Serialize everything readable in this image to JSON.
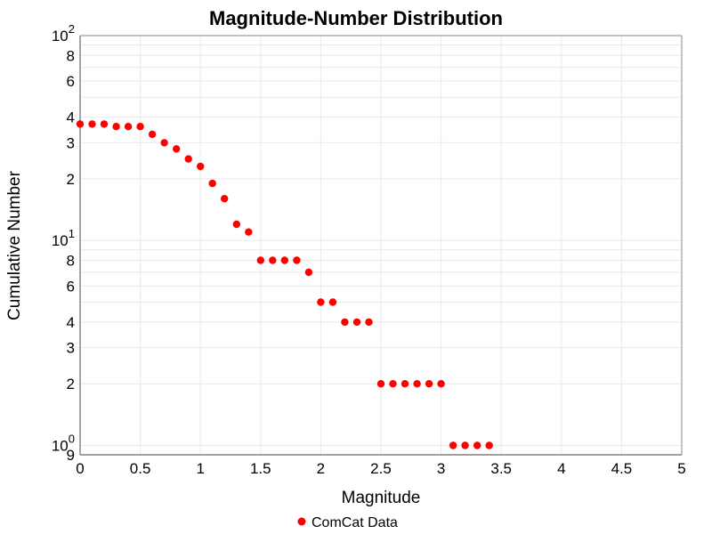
{
  "chart_data": {
    "type": "scatter",
    "title": "Magnitude-Number Distribution",
    "xlabel": "Magnitude",
    "ylabel": "Cumulative Number",
    "x_range": [
      0,
      5
    ],
    "y_scale": "log",
    "y_range": [
      0.9,
      100
    ],
    "grid": true,
    "x_ticks": [
      {
        "v": 0,
        "label": "0"
      },
      {
        "v": 0.5,
        "label": "0.5"
      },
      {
        "v": 1,
        "label": "1"
      },
      {
        "v": 1.5,
        "label": "1.5"
      },
      {
        "v": 2,
        "label": "2"
      },
      {
        "v": 2.5,
        "label": "2.5"
      },
      {
        "v": 3,
        "label": "3"
      },
      {
        "v": 3.5,
        "label": "3.5"
      },
      {
        "v": 4,
        "label": "4"
      },
      {
        "v": 4.5,
        "label": "4.5"
      },
      {
        "v": 5,
        "label": "5"
      }
    ],
    "y_ticks": [
      {
        "v": 100,
        "base": "10",
        "exp": "2"
      },
      {
        "v": 80,
        "label": "8"
      },
      {
        "v": 60,
        "label": "6"
      },
      {
        "v": 40,
        "label": "4"
      },
      {
        "v": 30,
        "label": "3"
      },
      {
        "v": 20,
        "label": "2"
      },
      {
        "v": 10,
        "base": "10",
        "exp": "1"
      },
      {
        "v": 8,
        "label": "8"
      },
      {
        "v": 6,
        "label": "6"
      },
      {
        "v": 4,
        "label": "4"
      },
      {
        "v": 3,
        "label": "3"
      },
      {
        "v": 2,
        "label": "2"
      },
      {
        "v": 1,
        "base": "10",
        "exp": "0"
      },
      {
        "v": 0.9,
        "label": "9"
      }
    ],
    "y_gridlines": [
      90,
      80,
      70,
      60,
      50,
      40,
      30,
      20,
      10,
      9,
      8,
      7,
      6,
      5,
      4,
      3,
      2,
      1,
      0.9
    ],
    "legend": {
      "position": "bottom-center",
      "entries": [
        {
          "label": "ComCat Data",
          "marker": "circle",
          "color": "#ff0000"
        }
      ]
    },
    "series": [
      {
        "name": "ComCat Data",
        "color": "#ff0000",
        "marker_size": 8.4,
        "x": [
          0.0,
          0.1,
          0.2,
          0.3,
          0.4,
          0.5,
          0.6,
          0.7,
          0.8,
          0.9,
          1.0,
          1.1,
          1.2,
          1.3,
          1.4,
          1.5,
          1.6,
          1.7,
          1.8,
          1.9,
          2.0,
          2.1,
          2.2,
          2.3,
          2.4,
          2.5,
          2.6,
          2.7,
          2.8,
          2.9,
          3.0,
          3.1,
          3.2,
          3.3,
          3.4
        ],
        "y": [
          37,
          37,
          37,
          36,
          36,
          36,
          33,
          30,
          28,
          25,
          23,
          19,
          16,
          12,
          11,
          8,
          8,
          8,
          8,
          7,
          5,
          5,
          4,
          4,
          4,
          2,
          2,
          2,
          2,
          2,
          2,
          1,
          1,
          1,
          1
        ]
      }
    ],
    "colors": {
      "marker": "#ff0000",
      "grid": "#e9e9e9",
      "border": "#9e9e9e",
      "axis_line": "#808080",
      "text": "#000000",
      "background": "#ffffff"
    }
  }
}
